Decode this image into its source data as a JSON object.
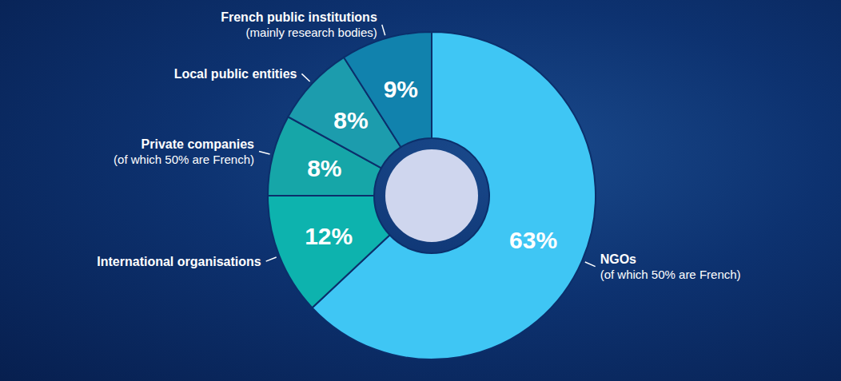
{
  "chart_data": {
    "type": "pie",
    "categories": [
      "NGOs",
      "International organisations",
      "Private companies",
      "Local public entities",
      "French public institutions"
    ],
    "sublabels": [
      "(of which 50% are French)",
      null,
      "(of which 50% are French)",
      null,
      "(mainly research bodies)"
    ],
    "values": [
      63,
      12,
      8,
      8,
      9
    ],
    "value_labels": [
      "63%",
      "12%",
      "8%",
      "8%",
      "9%"
    ],
    "colors": [
      "#3fc6f4",
      "#0db3ae",
      "#16a6a8",
      "#1c9cad",
      "#1182ad"
    ],
    "data_labels": true
  }
}
